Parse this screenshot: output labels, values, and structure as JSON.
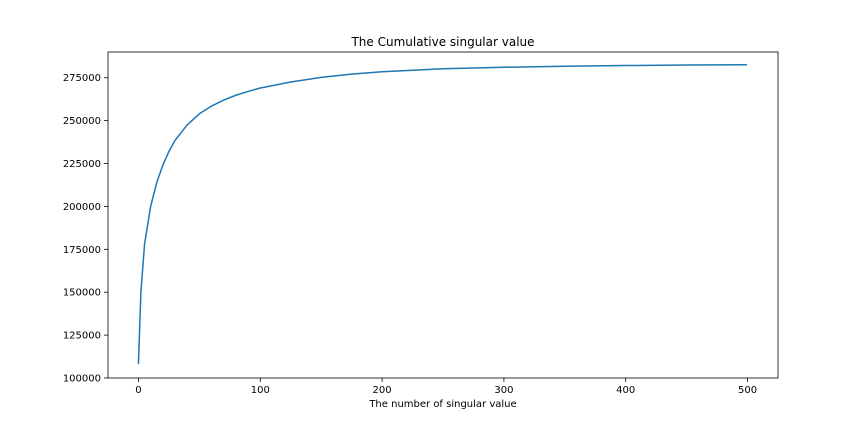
{
  "chart_data": {
    "type": "line",
    "title": "The Cumulative singular value",
    "xlabel": "The number of singular value",
    "ylabel": "",
    "xlim": [
      -25,
      525
    ],
    "ylim": [
      100000,
      290000
    ],
    "xticks": [
      0,
      100,
      200,
      300,
      400,
      500
    ],
    "xtick_labels": [
      "0",
      "100",
      "200",
      "300",
      "400",
      "500"
    ],
    "yticks": [
      100000,
      125000,
      150000,
      175000,
      200000,
      225000,
      250000,
      275000
    ],
    "ytick_labels": [
      "100000",
      "125000",
      "150000",
      "175000",
      "200000",
      "225000",
      "250000",
      "275000"
    ],
    "grid": false,
    "line_color": "#1f77b4",
    "series": [
      {
        "x": [
          0,
          2,
          5,
          10,
          15,
          20,
          25,
          30,
          40,
          50,
          60,
          70,
          80,
          90,
          100,
          125,
          150,
          175,
          200,
          250,
          300,
          350,
          400,
          450,
          499
        ],
        "values": [
          108500,
          150000,
          178000,
          200000,
          214000,
          224000,
          232000,
          238500,
          247500,
          254000,
          258500,
          262000,
          264800,
          267000,
          269000,
          272500,
          275200,
          277100,
          278500,
          280200,
          281100,
          281700,
          282100,
          282400,
          282600
        ]
      }
    ]
  }
}
